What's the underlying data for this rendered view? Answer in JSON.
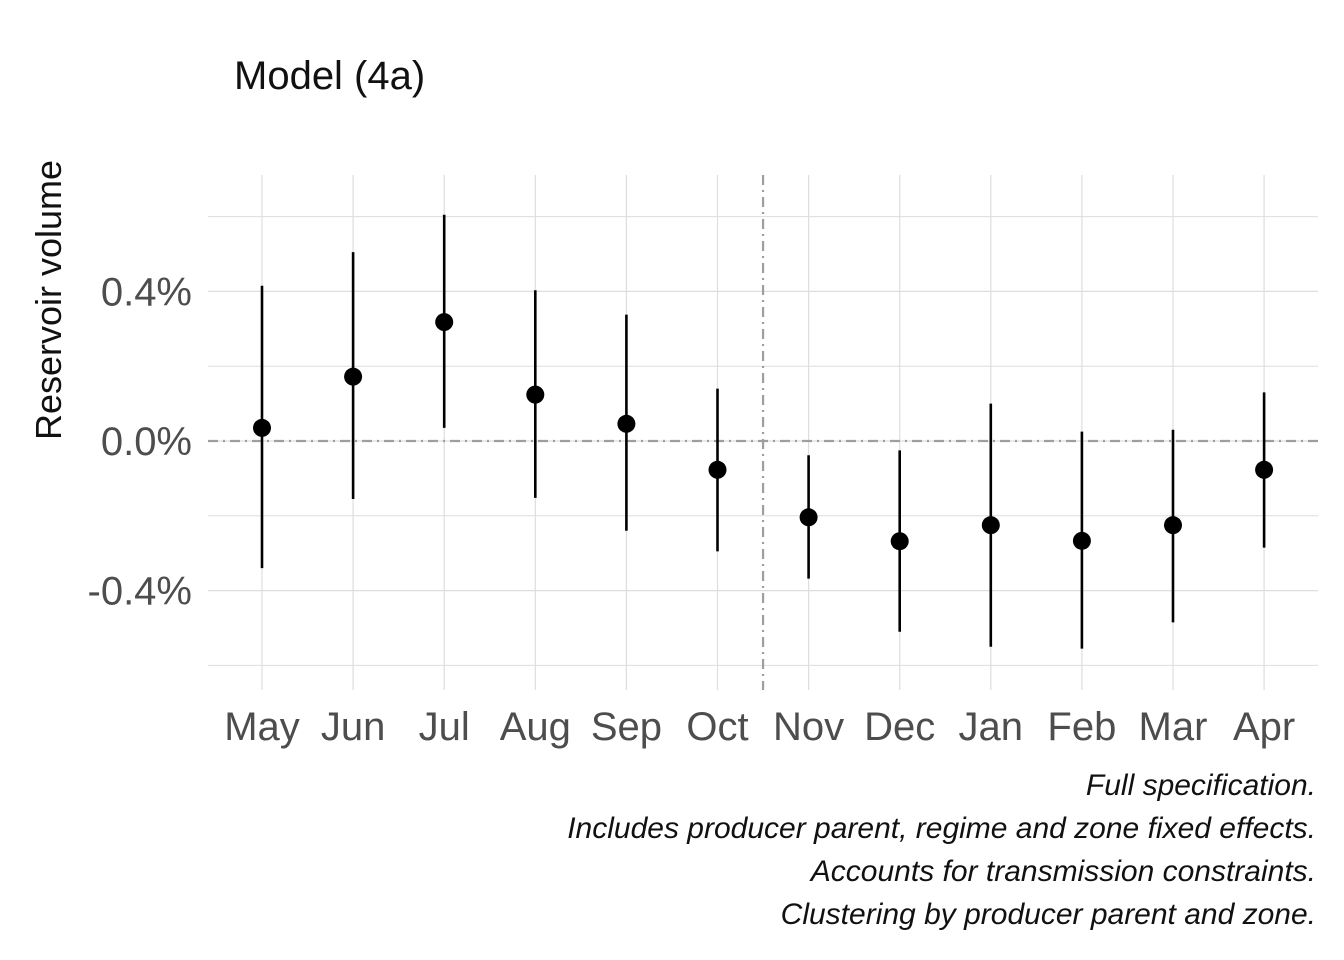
{
  "chart_data": {
    "type": "errorbar",
    "title": "Model (4a)",
    "ylabel": "Reservoir volume",
    "xlabel": "",
    "categories": [
      "May",
      "Jun",
      "Jul",
      "Aug",
      "Sep",
      "Oct",
      "Nov",
      "Dec",
      "Jan",
      "Feb",
      "Mar",
      "Apr"
    ],
    "estimates": [
      0.035,
      0.172,
      0.318,
      0.124,
      0.046,
      -0.077,
      -0.204,
      -0.268,
      -0.225,
      -0.267,
      -0.225,
      -0.077
    ],
    "lower": [
      -0.34,
      -0.155,
      0.035,
      -0.152,
      -0.24,
      -0.295,
      -0.368,
      -0.51,
      -0.55,
      -0.555,
      -0.485,
      -0.285
    ],
    "upper": [
      0.415,
      0.505,
      0.605,
      0.403,
      0.338,
      0.14,
      -0.038,
      -0.025,
      0.1,
      0.025,
      0.03,
      0.13
    ],
    "y_unit": "%",
    "ylim": [
      -0.6,
      0.6
    ],
    "y_ticks": [
      "0.4%",
      "0.0%",
      "-0.4%"
    ],
    "y_tick_values": [
      0.4,
      0.0,
      -0.4
    ],
    "minor_gridlines": [
      0.6,
      0.2,
      -0.2,
      -0.6
    ],
    "reference_hline": 0.0,
    "reference_vline_between": [
      "Oct",
      "Nov"
    ],
    "grid": true,
    "legend": "none",
    "caption": [
      "Full specification.",
      "Includes producer parent, regime and zone fixed effects.",
      "Accounts for transmission constraints.",
      "Clustering by producer parent and zone."
    ],
    "colors": {
      "points": "#000000",
      "grid": "#dedede",
      "reference": "#9e9e9e",
      "tick_text": "#4d4d4d"
    }
  }
}
